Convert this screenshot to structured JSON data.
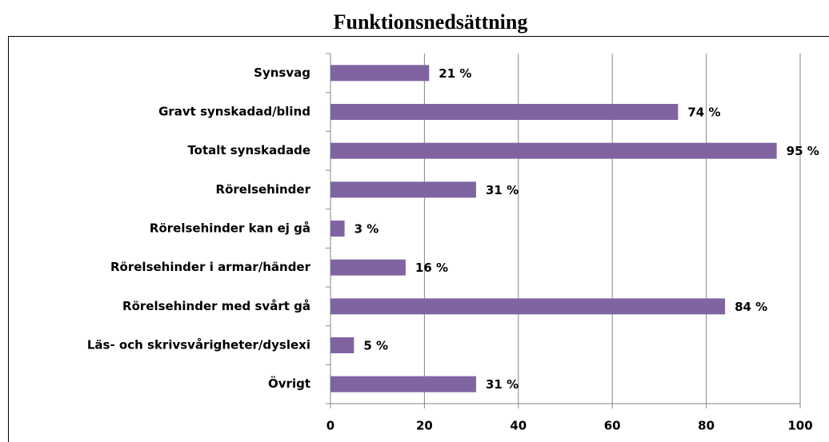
{
  "chart_data": {
    "type": "bar",
    "orientation": "horizontal",
    "title": "Funktionsnedsättning",
    "categories": [
      "Synsvag",
      "Gravt synskadad/blind",
      "Totalt synskadade",
      "Rörelsehinder",
      "Rörelsehinder kan ej gå",
      "Rörelsehinder i armar/händer",
      "Rörelsehinder med svårt gå",
      "Läs- och skrivsvårigheter/dyslexi",
      "Övrigt"
    ],
    "values": [
      21,
      74,
      95,
      31,
      3,
      16,
      84,
      5,
      31
    ],
    "value_labels": [
      "21 %",
      "74 %",
      "95 %",
      "31 %",
      "3 %",
      "16 %",
      "84 %",
      "5 %",
      "31 %"
    ],
    "color": "#8064a2",
    "xlim": [
      0,
      100
    ],
    "xticks": [
      0,
      20,
      40,
      60,
      80,
      100
    ],
    "grid": true
  }
}
